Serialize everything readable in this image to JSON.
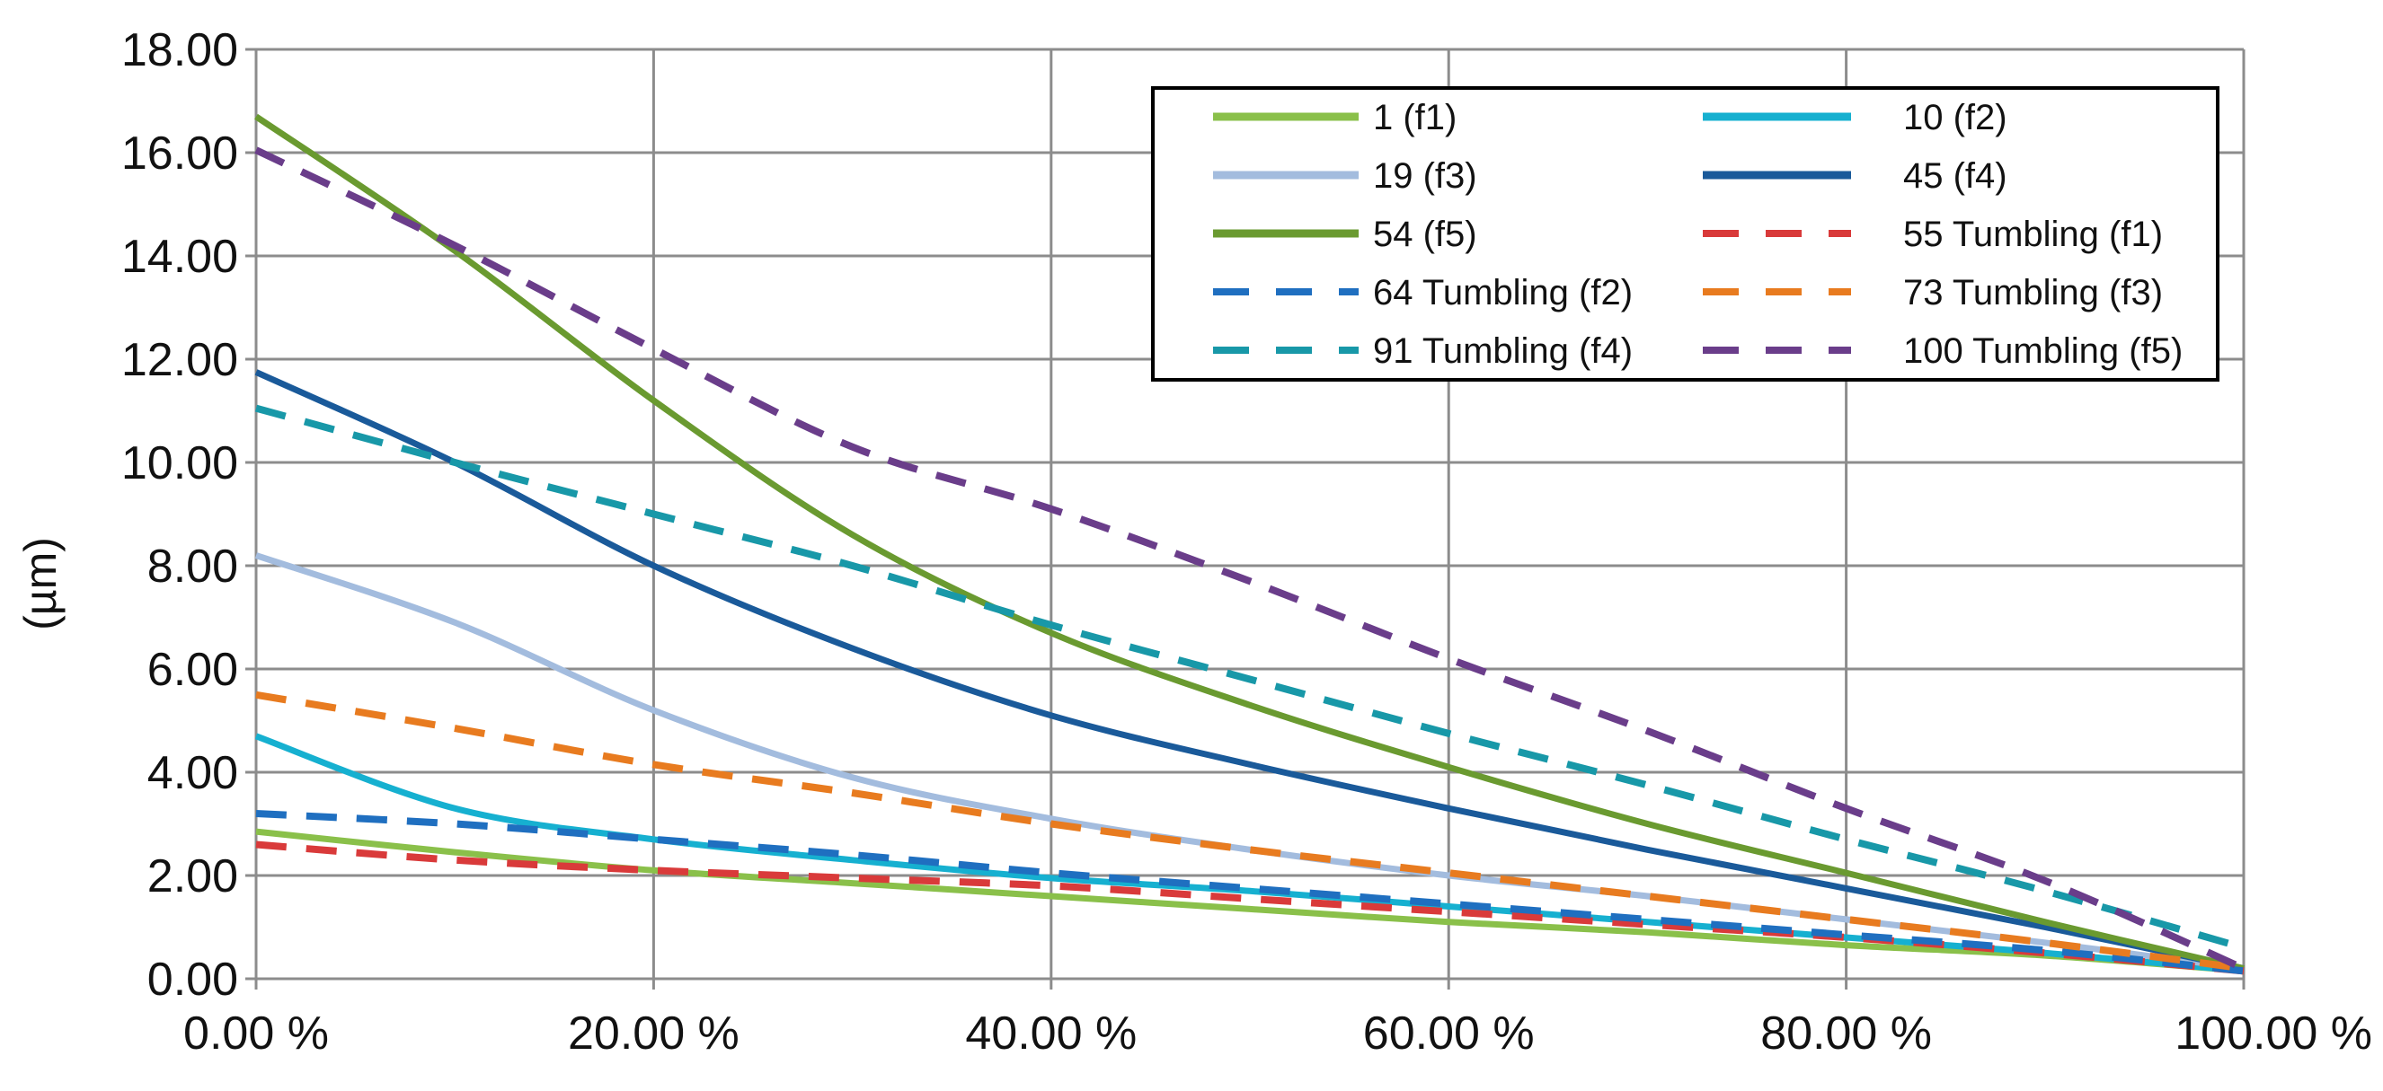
{
  "chart_data": {
    "type": "line",
    "title": "",
    "xlabel": "",
    "ylabel": "(µm)",
    "xlim": [
      0,
      100
    ],
    "ylim": [
      0,
      18
    ],
    "grid": true,
    "legend_position": "top-right",
    "x_ticks": [
      0,
      20,
      40,
      60,
      80,
      100
    ],
    "x_tick_labels": [
      "0.00 %",
      "20.00 %",
      "40.00 %",
      "60.00 %",
      "80.00 %",
      "100.00 %"
    ],
    "y_ticks": [
      0,
      2,
      4,
      6,
      8,
      10,
      12,
      14,
      16,
      18
    ],
    "y_tick_labels": [
      "0.00",
      "2.00",
      "4.00",
      "6.00",
      "8.00",
      "10.00",
      "12.00",
      "14.00",
      "16.00",
      "18.00"
    ],
    "x": [
      0,
      10,
      20,
      30,
      40,
      50,
      60,
      70,
      80,
      90,
      100
    ],
    "series": [
      {
        "name": "1 (f1)",
        "color": "#8ac04a",
        "dash": false,
        "values": [
          2.85,
          2.45,
          2.1,
          1.85,
          1.6,
          1.35,
          1.1,
          0.9,
          0.65,
          0.45,
          0.15
        ]
      },
      {
        "name": "10 (f2)",
        "color": "#16b0d0",
        "dash": false,
        "values": [
          4.7,
          3.3,
          2.7,
          2.3,
          1.95,
          1.7,
          1.4,
          1.1,
          0.8,
          0.5,
          0.15
        ]
      },
      {
        "name": "19 (f3)",
        "color": "#a3bcde",
        "dash": false,
        "values": [
          8.2,
          6.9,
          5.2,
          3.9,
          3.1,
          2.5,
          2.0,
          1.6,
          1.15,
          0.7,
          0.2
        ]
      },
      {
        "name": "45 (f4)",
        "color": "#1a5a9a",
        "dash": false,
        "values": [
          11.75,
          10.0,
          8.0,
          6.4,
          5.1,
          4.15,
          3.3,
          2.5,
          1.75,
          1.0,
          0.2
        ]
      },
      {
        "name": "54 (f5)",
        "color": "#6a9a30",
        "dash": false,
        "values": [
          16.7,
          14.1,
          11.2,
          8.6,
          6.7,
          5.3,
          4.1,
          3.0,
          2.05,
          1.1,
          0.2
        ]
      },
      {
        "name": "55 Tumbling (f1)",
        "color": "#d93a3a",
        "dash": true,
        "values": [
          2.6,
          2.3,
          2.1,
          1.95,
          1.8,
          1.55,
          1.3,
          1.05,
          0.8,
          0.5,
          0.15
        ]
      },
      {
        "name": "64 Tumbling (f2)",
        "color": "#1f6fc0",
        "dash": true,
        "values": [
          3.2,
          3.0,
          2.7,
          2.4,
          2.05,
          1.75,
          1.45,
          1.15,
          0.85,
          0.55,
          0.15
        ]
      },
      {
        "name": "73 Tumbling (f3)",
        "color": "#e87b1f",
        "dash": true,
        "values": [
          5.5,
          4.85,
          4.15,
          3.6,
          3.0,
          2.5,
          2.05,
          1.6,
          1.15,
          0.7,
          0.2
        ]
      },
      {
        "name": "91 Tumbling (f4)",
        "color": "#1898a8",
        "dash": true,
        "values": [
          11.05,
          10.0,
          9.0,
          8.0,
          6.85,
          5.8,
          4.75,
          3.75,
          2.7,
          1.7,
          0.6
        ]
      },
      {
        "name": "100 Tumbling (f5)",
        "color": "#6a3d8a",
        "dash": true,
        "values": [
          16.05,
          14.2,
          12.2,
          10.3,
          9.1,
          7.7,
          6.2,
          4.8,
          3.3,
          1.9,
          0.2
        ]
      }
    ]
  }
}
